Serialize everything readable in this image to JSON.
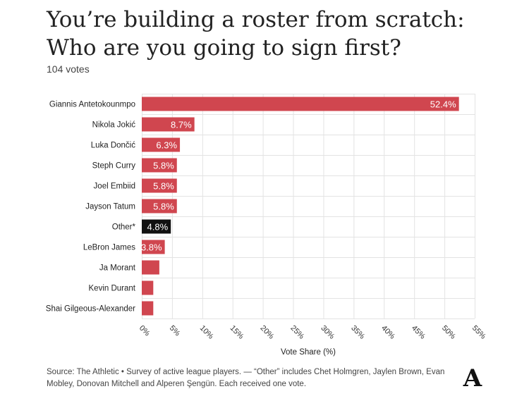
{
  "title": "You’re building a roster from scratch: Who are you going to sign first?",
  "subtitle": "104 votes",
  "footer": "Source: The Athletic • Survey of active league players. — “Other” includes Chet Holmgren, Jaylen Brown, Evan Mobley, Donovan Mitchell and Alperen Şengün. Each received one vote.",
  "logo": "A",
  "colors": {
    "bar": "#d0464f",
    "highlight": "#111111",
    "grid": "#e3e3e3"
  },
  "chart_data": {
    "type": "bar",
    "orientation": "horizontal",
    "categories": [
      "Giannis Antetokounmpo",
      "Nikola Jokić",
      "Luka Dončić",
      "Steph Curry",
      "Joel Embiid",
      "Jayson Tatum",
      "Other*",
      "LeBron James",
      "Ja Morant",
      "Kevin Durant",
      "Shai Gilgeous-Alexander"
    ],
    "values": [
      52.4,
      8.7,
      6.3,
      5.8,
      5.8,
      5.8,
      4.8,
      3.8,
      2.9,
      1.9,
      1.9
    ],
    "labels": [
      "52.4%",
      "8.7%",
      "6.3%",
      "5.8%",
      "5.8%",
      "5.8%",
      "4.8%",
      "3.8%",
      "",
      "",
      ""
    ],
    "highlight": [
      false,
      false,
      false,
      false,
      false,
      false,
      true,
      false,
      false,
      false,
      false
    ],
    "xlabel": "Vote Share (%)",
    "ylabel": "",
    "xlim": [
      0,
      55
    ],
    "xticks": [
      0,
      5,
      10,
      15,
      20,
      25,
      30,
      35,
      40,
      45,
      50,
      55
    ],
    "xtick_labels": [
      "0%",
      "5%",
      "10%",
      "15%",
      "20%",
      "25%",
      "30%",
      "35%",
      "40%",
      "45%",
      "50%",
      "55%"
    ],
    "grid": true
  }
}
